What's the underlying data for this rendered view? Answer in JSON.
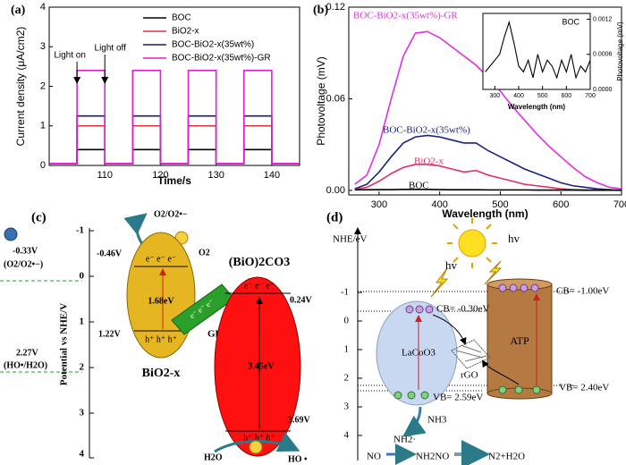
{
  "chart_data": [
    {
      "type": "line",
      "panel": "(a)",
      "xlabel": "Time/s",
      "ylabel": "Current density (μA/cm2)",
      "xlim": [
        100,
        145
      ],
      "xticks": [
        110,
        120,
        130,
        140
      ],
      "ylim": [
        0,
        4
      ],
      "yticks": [
        0,
        1,
        2,
        3,
        4
      ],
      "legend": "upper right",
      "x": [
        100,
        105,
        105,
        110,
        110,
        115,
        115,
        120,
        120,
        125,
        125,
        130,
        130,
        135,
        135,
        140,
        140,
        145
      ],
      "series": [
        {
          "name": "BOC",
          "color": "#000000",
          "values": [
            0.05,
            0.05,
            0.4,
            0.4,
            0.05,
            0.05,
            0.4,
            0.4,
            0.05,
            0.05,
            0.4,
            0.4,
            0.05,
            0.05,
            0.4,
            0.4,
            0.05,
            0.05
          ]
        },
        {
          "name": "BiO2-x",
          "color": "#e0303a",
          "values": [
            0.05,
            0.05,
            1.0,
            1.0,
            0.05,
            0.05,
            1.0,
            1.0,
            0.05,
            0.05,
            1.0,
            1.0,
            0.05,
            0.05,
            1.0,
            1.0,
            0.05,
            0.05
          ]
        },
        {
          "name": "BOC-BiO2-x(35wt%)",
          "color": "#1a1a6e",
          "values": [
            0.05,
            0.05,
            1.25,
            1.25,
            0.05,
            0.05,
            1.25,
            1.25,
            0.05,
            0.05,
            1.25,
            1.25,
            0.05,
            0.05,
            1.25,
            1.25,
            0.05,
            0.05
          ]
        },
        {
          "name": "BOC-BiO2-x(35wt%)-GR",
          "color": "#e020d0",
          "values": [
            0.05,
            0.05,
            2.4,
            2.4,
            0.05,
            0.05,
            2.4,
            2.4,
            0.05,
            0.05,
            2.4,
            2.4,
            0.05,
            0.05,
            2.4,
            2.4,
            0.05,
            0.05
          ]
        }
      ],
      "annotations": [
        {
          "text": "Light on",
          "x": 105
        },
        {
          "text": "Light off",
          "x": 110
        }
      ]
    },
    {
      "type": "line",
      "panel": "(b)",
      "xlabel": "Wavelength (nm)",
      "ylabel": "Photovoltage (mV)",
      "xlim": [
        250,
        700
      ],
      "xticks": [
        300,
        400,
        500,
        600,
        700
      ],
      "ylim": [
        -0.003,
        0.12
      ],
      "yticks": [
        {
          "value": 0,
          "label": "0.00"
        },
        0.06,
        0.12
      ],
      "legend": "inline",
      "x": [
        260,
        280,
        300,
        320,
        340,
        360,
        380,
        400,
        420,
        440,
        460,
        480,
        500,
        520,
        540,
        560,
        580,
        600,
        620,
        640,
        660,
        680,
        700
      ],
      "series": [
        {
          "name": "BOC-BiO2-x(35wt%)-GR",
          "color": "#e030e0",
          "values": [
            0.004,
            0.01,
            0.03,
            0.06,
            0.088,
            0.103,
            0.104,
            0.1,
            0.094,
            0.088,
            0.082,
            0.074,
            0.065,
            0.055,
            0.046,
            0.037,
            0.029,
            0.022,
            0.015,
            0.009,
            0.005,
            0.002,
            0.001
          ]
        },
        {
          "name": "BOC-BiO2-x(35wt%)",
          "color": "#1a237e",
          "values": [
            0.001,
            0.004,
            0.012,
            0.022,
            0.031,
            0.035,
            0.036,
            0.035,
            0.033,
            0.031,
            0.031,
            0.026,
            0.022,
            0.018,
            0.014,
            0.011,
            0.008,
            0.005,
            0.003,
            0.002,
            0.001,
            0.0005,
            0
          ]
        },
        {
          "name": "BiO2-x",
          "color": "#e0306a",
          "values": [
            0.0005,
            0.002,
            0.006,
            0.011,
            0.015,
            0.017,
            0.017,
            0.016,
            0.014,
            0.012,
            0.013,
            0.01,
            0.008,
            0.006,
            0.004,
            0.003,
            0.002,
            0.001,
            0.0005,
            0.0003,
            0.0002,
            0.0001,
            0
          ]
        },
        {
          "name": "BOC",
          "color": "#000000",
          "values": [
            0.0003,
            0.0004,
            0.0005,
            0.0005,
            0.0006,
            0.0007,
            0.0006,
            0.0005,
            0.0004,
            0.0004,
            0.0004,
            0.0003,
            0.0003,
            0.0003,
            0.0003,
            0.0002,
            0.0002,
            0.0002,
            0.0002,
            0.0001,
            0.0001,
            0.0001,
            0.0001
          ]
        }
      ]
    },
    {
      "type": "line",
      "title": "BOC",
      "xlabel": "Wavelength (nm)",
      "ylabel": "Photovoltage (mV)",
      "yaxis_side": "right",
      "xlim": [
        250,
        700
      ],
      "xticks": [
        300,
        400,
        500,
        600,
        700
      ],
      "ylim": [
        0,
        0.0013
      ],
      "yticks": [
        {
          "value": 0,
          "label": "0.0000"
        },
        0.0006,
        0.0012
      ],
      "x": [
        260,
        280,
        300,
        320,
        340,
        360,
        380,
        400,
        420,
        440,
        460,
        480,
        500,
        520,
        540,
        560,
        580,
        600,
        620,
        640,
        660,
        680,
        700
      ],
      "series": [
        {
          "color": "#000000",
          "values": [
            0.0003,
            0.0004,
            0.0005,
            0.0006,
            0.0009,
            0.00115,
            0.0008,
            0.0004,
            0.0003,
            0.0005,
            0.0002,
            0.0006,
            0.0003,
            0.0005,
            0.0004,
            0.0002,
            0.0005,
            0.0003,
            0.0006,
            0.0002,
            0.0004,
            0.0003,
            0.0005
          ]
        }
      ]
    }
  ],
  "diagram_c": {
    "label": "(c)",
    "axis_title": "Potential vs NHE/V",
    "ticks": [
      "-1",
      "0",
      "1",
      "2",
      "3",
      "4"
    ],
    "redox_1": {
      "potential": "-0.33V",
      "couple": "(O2/O2•−)"
    },
    "redox_2": {
      "potential": "2.27V",
      "couple": "(HO•/H2O)"
    },
    "bio": {
      "name": "BiO2-x",
      "cb": "-0.46V",
      "gap": "1.68eV",
      "vb": "1.22V"
    },
    "boc": {
      "name": "(BiO)2CO3",
      "cb": "0.24V",
      "gap": "3.45eV",
      "vb": "3.69V"
    },
    "electrons": "e⁻ e⁻ e⁻",
    "holes": "h⁺ h⁺ h⁺",
    "gr": "GR",
    "product_1": "O2/O2•−",
    "reactant_1": "O2",
    "reactant_2": "H2O",
    "product_2": "HO •"
  },
  "diagram_d": {
    "label": "(d)",
    "axis_title": "NHE/eV",
    "ticks": [
      "-1",
      "0",
      "1",
      "2",
      "3",
      "4"
    ],
    "light": "hv",
    "lacoo3": {
      "name": "LaCoO3",
      "cb": "CB= -0.30eV",
      "vb": "VB= 2.59eV"
    },
    "atp": {
      "name": "ATP",
      "cb": "CB= -1.00eV",
      "vb": "VB= 2.40eV"
    },
    "rgo": "rGO",
    "species": [
      "NH3",
      "NH2·",
      "NO",
      "NH2NO",
      "N2+H2O"
    ]
  }
}
